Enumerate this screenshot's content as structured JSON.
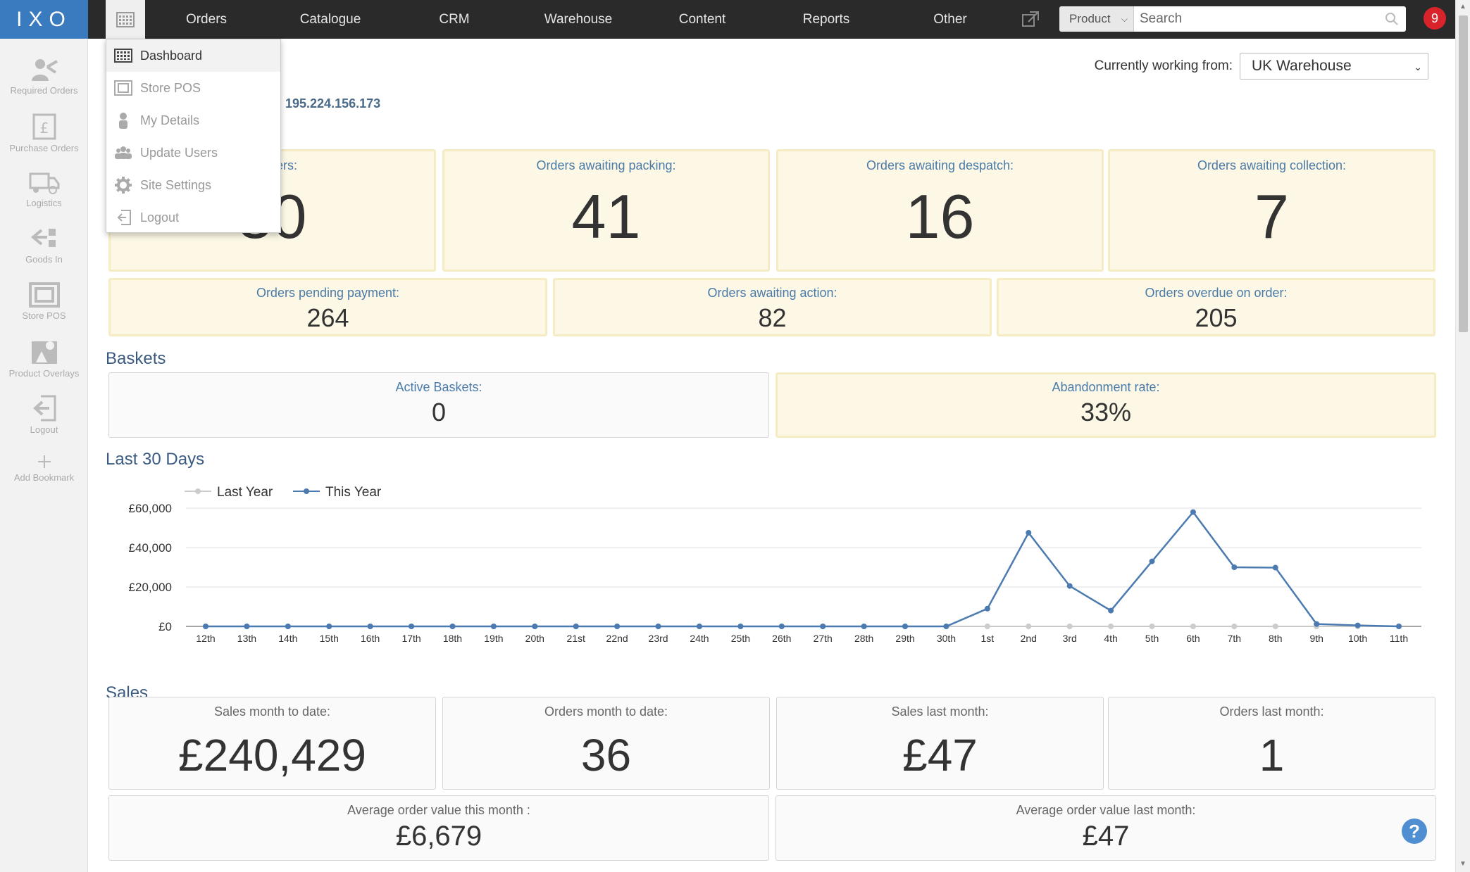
{
  "app": {
    "logo": "IXO"
  },
  "topnav": {
    "items": [
      "Orders",
      "Catalogue",
      "CRM",
      "Warehouse",
      "Content",
      "Reports",
      "Other"
    ],
    "search": {
      "scope": "Product",
      "placeholder": "Search"
    },
    "notifications": "9"
  },
  "sidebar": {
    "items": [
      {
        "label": "Required Orders",
        "icon": "required-orders-icon"
      },
      {
        "label": "Purchase Orders",
        "icon": "purchase-orders-icon"
      },
      {
        "label": "Logistics",
        "icon": "truck-icon"
      },
      {
        "label": "Goods In",
        "icon": "goods-in-icon"
      },
      {
        "label": "Store POS",
        "icon": "store-pos-icon"
      },
      {
        "label": "Product Overlays",
        "icon": "product-overlays-icon"
      },
      {
        "label": "Logout",
        "icon": "logout-icon"
      },
      {
        "label": "Add Bookmark",
        "icon": "plus-icon"
      }
    ]
  },
  "dropdown": {
    "items": [
      "Dashboard",
      "Store POS",
      "My Details",
      "Update Users",
      "Site Settings",
      "Logout"
    ]
  },
  "header": {
    "working_label": "Currently working from:",
    "working_value": "UK Warehouse",
    "ip": "195.224.156.173"
  },
  "orders": {
    "top": [
      {
        "label": "d orders:",
        "value": "30"
      },
      {
        "label": "Orders awaiting packing:",
        "value": "41"
      },
      {
        "label": "Orders awaiting despatch:",
        "value": "16"
      },
      {
        "label": "Orders awaiting collection:",
        "value": "7"
      }
    ],
    "second": [
      {
        "label": "Orders pending payment:",
        "value": "264"
      },
      {
        "label": "Orders awaiting action:",
        "value": "82"
      },
      {
        "label": "Orders overdue on order:",
        "value": "205"
      }
    ]
  },
  "baskets": {
    "title": "Baskets",
    "active_label": "Active Baskets:",
    "active_value": "0",
    "abandon_label": "Abandonment rate:",
    "abandon_value": "33%"
  },
  "last30": {
    "title": "Last 30 Days"
  },
  "chart_data": {
    "type": "line",
    "x": [
      "12th",
      "13th",
      "14th",
      "15th",
      "16th",
      "17th",
      "18th",
      "19th",
      "20th",
      "21st",
      "22nd",
      "23rd",
      "24th",
      "25th",
      "26th",
      "27th",
      "28th",
      "29th",
      "30th",
      "1st",
      "2nd",
      "3rd",
      "4th",
      "5th",
      "6th",
      "7th",
      "8th",
      "9th",
      "10th",
      "11th"
    ],
    "series": [
      {
        "name": "Last Year",
        "color": "#cccccc",
        "values": [
          0,
          0,
          0,
          0,
          0,
          0,
          0,
          0,
          0,
          0,
          0,
          0,
          0,
          0,
          0,
          0,
          0,
          0,
          0,
          0,
          0,
          0,
          0,
          0,
          0,
          0,
          0,
          0,
          0,
          0
        ]
      },
      {
        "name": "This Year",
        "color": "#4a7ab0",
        "values": [
          0,
          0,
          0,
          0,
          0,
          0,
          0,
          0,
          0,
          0,
          0,
          0,
          0,
          0,
          0,
          0,
          0,
          0,
          0,
          9000,
          47500,
          20500,
          8000,
          33000,
          58000,
          30000,
          29800,
          1200,
          500,
          0
        ]
      }
    ],
    "yticks": [
      "£0",
      "£20,000",
      "£40,000",
      "£60,000"
    ],
    "ylim": [
      0,
      60000
    ],
    "legend": "top-left",
    "grid": true
  },
  "sales": {
    "title": "Sales",
    "cards": [
      {
        "label": "Sales month to date:",
        "value": "£240,429"
      },
      {
        "label": "Orders month to date:",
        "value": "36"
      },
      {
        "label": "Sales last month:",
        "value": "£47"
      },
      {
        "label": "Orders last month:",
        "value": "1"
      }
    ],
    "avg": [
      {
        "label": "Average order value this month :",
        "value": "£6,679"
      },
      {
        "label": "Average order value last month:",
        "value": "£47"
      }
    ]
  },
  "help": "?"
}
